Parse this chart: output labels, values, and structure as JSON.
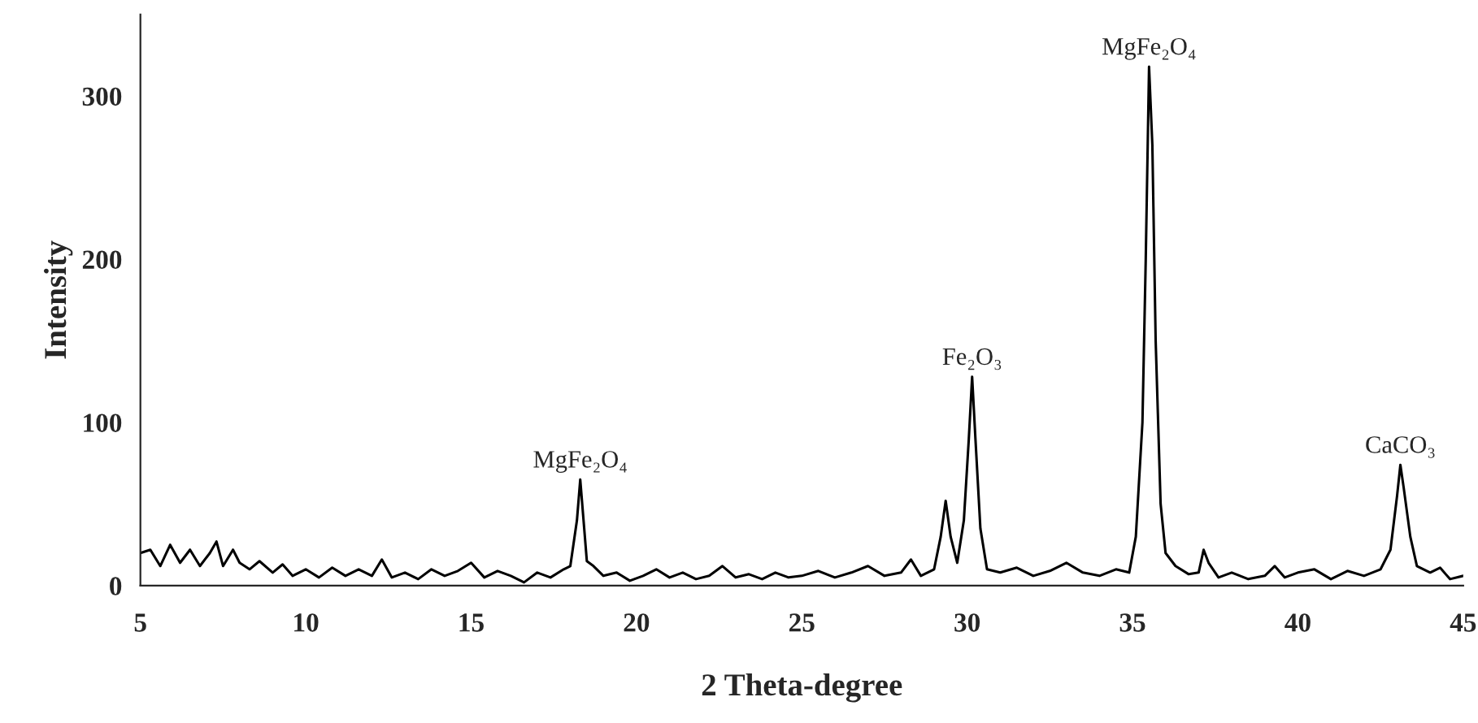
{
  "chart_data": {
    "type": "line",
    "xlabel": "2 Theta-degree",
    "ylabel": "Intensity",
    "xlim": [
      5,
      45
    ],
    "xticks": [
      5,
      10,
      15,
      20,
      25,
      30,
      35,
      40,
      45
    ],
    "ylim": [
      0,
      350
    ],
    "yticks": [
      0,
      100,
      200,
      300
    ],
    "grid": false,
    "legend": false,
    "marker": "none",
    "line_style": "solid",
    "annotations": [
      {
        "text": "MgFe₂O₄",
        "x": 18.3,
        "y": 65
      },
      {
        "text": "Fe₂O₃",
        "x": 30.15,
        "y": 128
      },
      {
        "text": "MgFe₂O₄",
        "x": 35.5,
        "y": 318
      },
      {
        "text": "CaCO₃",
        "x": 43.1,
        "y": 74
      }
    ],
    "series": [
      {
        "color": "#000000",
        "x": [
          5.0,
          5.3,
          5.6,
          5.9,
          6.2,
          6.5,
          6.8,
          7.1,
          7.3,
          7.5,
          7.8,
          8.0,
          8.3,
          8.6,
          9.0,
          9.3,
          9.6,
          10.0,
          10.4,
          10.8,
          11.2,
          11.6,
          12.0,
          12.3,
          12.6,
          13.0,
          13.4,
          13.8,
          14.2,
          14.6,
          15.0,
          15.4,
          15.8,
          16.2,
          16.6,
          17.0,
          17.4,
          17.8,
          18.0,
          18.2,
          18.3,
          18.4,
          18.5,
          18.7,
          19.0,
          19.4,
          19.8,
          20.2,
          20.6,
          21.0,
          21.4,
          21.8,
          22.2,
          22.6,
          23.0,
          23.4,
          23.8,
          24.2,
          24.6,
          25.0,
          25.5,
          26.0,
          26.5,
          27.0,
          27.5,
          28.0,
          28.3,
          28.6,
          29.0,
          29.2,
          29.35,
          29.5,
          29.7,
          29.9,
          30.05,
          30.15,
          30.25,
          30.4,
          30.6,
          31.0,
          31.5,
          32.0,
          32.5,
          33.0,
          33.5,
          34.0,
          34.5,
          34.9,
          35.1,
          35.3,
          35.4,
          35.5,
          35.6,
          35.7,
          35.85,
          36.0,
          36.3,
          36.7,
          37.0,
          37.15,
          37.3,
          37.6,
          38.0,
          38.5,
          39.0,
          39.3,
          39.6,
          40.0,
          40.5,
          41.0,
          41.5,
          42.0,
          42.5,
          42.8,
          43.0,
          43.1,
          43.2,
          43.4,
          43.6,
          44.0,
          44.3,
          44.6,
          45.0
        ],
        "values": [
          20,
          22,
          12,
          25,
          14,
          22,
          12,
          20,
          27,
          12,
          22,
          14,
          10,
          15,
          8,
          13,
          6,
          10,
          5,
          11,
          6,
          10,
          6,
          16,
          5,
          8,
          4,
          10,
          6,
          9,
          14,
          5,
          9,
          6,
          2,
          8,
          5,
          10,
          12,
          40,
          65,
          40,
          15,
          12,
          6,
          8,
          3,
          6,
          10,
          5,
          8,
          4,
          6,
          12,
          5,
          7,
          4,
          8,
          5,
          6,
          9,
          5,
          8,
          12,
          6,
          8,
          16,
          6,
          10,
          30,
          52,
          30,
          14,
          40,
          90,
          128,
          90,
          35,
          10,
          8,
          11,
          6,
          9,
          14,
          8,
          6,
          10,
          8,
          30,
          100,
          200,
          318,
          270,
          150,
          50,
          20,
          12,
          7,
          8,
          22,
          14,
          5,
          8,
          4,
          6,
          12,
          5,
          8,
          10,
          4,
          9,
          6,
          10,
          22,
          55,
          74,
          60,
          30,
          12,
          8,
          11,
          4,
          6
        ]
      }
    ]
  }
}
